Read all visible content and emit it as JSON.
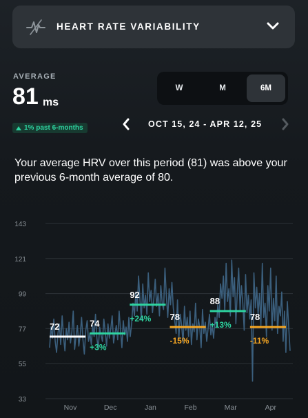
{
  "header": {
    "title": "HEART RATE VARIABILITY",
    "icon": "hrv-pulse-icon",
    "chevron": "chevron-down-icon"
  },
  "average": {
    "label": "AVERAGE",
    "value": "81",
    "unit": "ms"
  },
  "badge": {
    "text": "1% past 6-months",
    "color": "#2ed4a0"
  },
  "period_selector": {
    "options": [
      "W",
      "M",
      "6M"
    ],
    "selected": "6M"
  },
  "date_nav": {
    "range": "OCT 15, 24 - APR 12, 25"
  },
  "summary": "Your average HRV over this period (81) was above your previous 6-month average of 80.",
  "chart_data": {
    "type": "line",
    "ylim": [
      33,
      143
    ],
    "yticks": [
      143,
      121,
      99,
      77,
      55,
      33
    ],
    "x_labels": [
      "Nov",
      "Dec",
      "Jan",
      "Feb",
      "Mar",
      "Apr"
    ],
    "monthly_averages": [
      {
        "value": 72,
        "label": "72",
        "change": "",
        "color": "#ffffff"
      },
      {
        "value": 74,
        "label": "74",
        "change": "+3%",
        "color": "#2ed4a0"
      },
      {
        "value": 92,
        "label": "92",
        "change": "+24%",
        "color": "#2ed4a0"
      },
      {
        "value": 78,
        "label": "78",
        "change": "-15%",
        "color": "#f5a623"
      },
      {
        "value": 88,
        "label": "88",
        "change": "+13%",
        "color": "#2ed4a0"
      },
      {
        "value": 78,
        "label": "78",
        "change": "-11%",
        "color": "#f5a623"
      }
    ],
    "daily_series_color": "#3b5f7d",
    "daily_values": [
      65,
      78,
      71,
      83,
      69,
      62,
      74,
      80,
      67,
      85,
      72,
      63,
      77,
      70,
      81,
      68,
      75,
      88,
      64,
      72,
      79,
      66,
      73,
      84,
      70,
      61,
      76,
      82,
      69,
      74,
      67,
      79,
      72,
      86,
      71,
      64,
      78,
      73,
      69,
      83,
      75,
      66,
      80,
      71,
      77,
      85,
      68,
      74,
      79,
      70,
      88,
      76,
      65,
      82,
      73,
      78,
      69,
      84,
      72,
      80,
      93,
      85,
      100,
      88,
      110,
      95,
      83,
      105,
      90,
      98,
      86,
      112,
      94,
      101,
      87,
      96,
      108,
      91,
      99,
      85,
      104,
      93,
      89,
      115,
      97,
      84,
      102,
      92,
      106,
      90,
      82,
      74,
      95,
      71,
      86,
      79,
      68,
      91,
      76,
      84,
      72,
      88,
      67,
      80,
      75,
      93,
      70,
      83,
      78,
      65,
      89,
      74,
      81,
      69,
      77,
      86,
      73,
      79,
      71,
      84,
      78,
      92,
      84,
      105,
      96,
      110,
      88,
      118,
      94,
      102,
      85,
      120,
      97,
      109,
      80,
      99,
      115,
      89,
      104,
      93,
      76,
      111,
      87,
      98,
      83,
      95,
      44,
      112,
      90,
      103,
      86,
      99,
      79,
      118,
      84,
      93,
      72,
      104,
      88,
      115,
      76,
      96,
      82,
      110,
      74,
      91,
      85,
      100,
      69,
      88,
      62,
      94,
      78,
      63
    ]
  }
}
